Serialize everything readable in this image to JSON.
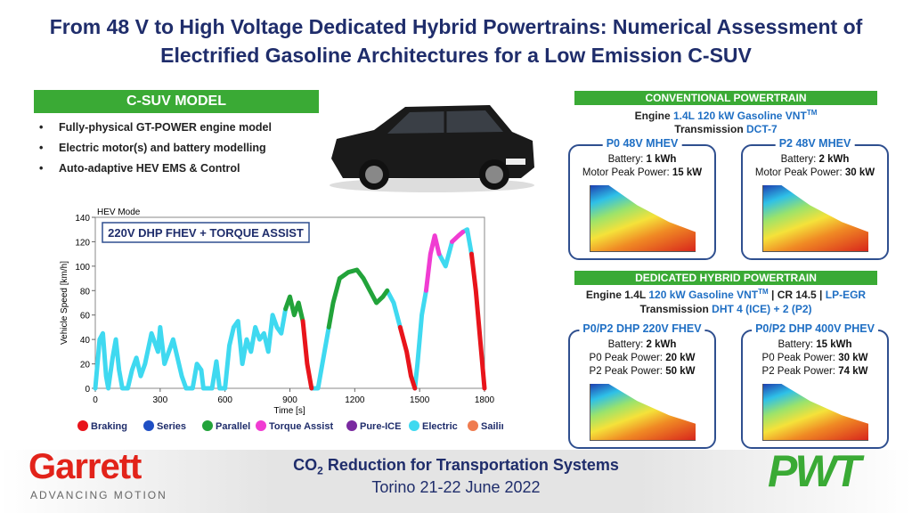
{
  "title": "From 48 V to High Voltage Dedicated Hybrid Powertrains: Numerical Assessment of Electrified Gasoline Architectures for a Low Emission C-SUV",
  "model": {
    "heading": "C-SUV MODEL",
    "bullets": [
      "Fully-physical GT-POWER engine model",
      "Electric motor(s) and battery modelling",
      "Auto-adaptive HEV EMS & Control"
    ]
  },
  "chart_data": {
    "type": "line",
    "title": "HEV Mode",
    "annotation": "220V DHP FHEV + TORQUE ASSIST",
    "x_label": "Time [s]",
    "y_label": "Vehicle Speed [km/h]",
    "xlim": [
      0,
      1800
    ],
    "xticks": [
      0,
      300,
      600,
      900,
      1200,
      1500,
      1800
    ],
    "ylim": [
      0,
      140
    ],
    "yticks": [
      0,
      20,
      40,
      60,
      80,
      100,
      120,
      140
    ],
    "series": [
      {
        "name": "Braking",
        "color": "#e8141b",
        "x": [
          960,
          980,
          1000,
          null,
          1410,
          1440,
          1460,
          1478,
          null,
          1740,
          1760,
          1780,
          1800
        ],
        "values": [
          55,
          20,
          0,
          null,
          50,
          30,
          10,
          0,
          null,
          110,
          80,
          40,
          0
        ]
      },
      {
        "name": "Series",
        "color": "#1f4fc4",
        "x": [],
        "values": []
      },
      {
        "name": "Parallel",
        "color": "#22a33a",
        "x": [
          880,
          900,
          920,
          940,
          960,
          null,
          1080,
          1100,
          1130,
          1170,
          1210,
          1240,
          1270,
          1300,
          1330,
          1350
        ],
        "values": [
          65,
          75,
          60,
          70,
          55,
          null,
          50,
          70,
          90,
          95,
          97,
          90,
          80,
          70,
          75,
          80
        ]
      },
      {
        "name": "Torque Assist",
        "color": "#f03cd2",
        "x": [
          1530,
          1550,
          1570,
          1590,
          null,
          1650,
          1680,
          1700
        ],
        "values": [
          80,
          110,
          125,
          110,
          null,
          120,
          125,
          128
        ]
      },
      {
        "name": "Pure-ICE",
        "color": "#7a2aa0",
        "x": [],
        "values": []
      },
      {
        "name": "Electric",
        "color": "#3fd9f0",
        "x": [
          0,
          10,
          20,
          35,
          50,
          60,
          80,
          95,
          110,
          125,
          150,
          170,
          190,
          210,
          230,
          260,
          290,
          300,
          320,
          340,
          360,
          380,
          400,
          420,
          450,
          470,
          490,
          500,
          540,
          560,
          575,
          600,
          620,
          640,
          660,
          680,
          700,
          720,
          740,
          760,
          780,
          800,
          820,
          840,
          860,
          880,
          null,
          1000,
          1030,
          1060,
          1080,
          null,
          1350,
          1380,
          1410,
          null,
          1478,
          1490,
          1510,
          1530,
          null,
          1590,
          1620,
          1650,
          null,
          1700,
          1720,
          1740
        ],
        "values": [
          0,
          20,
          40,
          45,
          10,
          0,
          25,
          40,
          15,
          0,
          0,
          15,
          25,
          10,
          20,
          45,
          30,
          50,
          20,
          30,
          40,
          25,
          10,
          0,
          0,
          20,
          15,
          0,
          0,
          22,
          0,
          0,
          35,
          50,
          55,
          20,
          40,
          30,
          50,
          40,
          45,
          30,
          60,
          50,
          45,
          65,
          null,
          0,
          0,
          30,
          50,
          null,
          80,
          70,
          50,
          null,
          0,
          20,
          60,
          80,
          null,
          110,
          100,
          120,
          null,
          128,
          130,
          110
        ]
      },
      {
        "name": "Sailing",
        "color": "#ef7b4f",
        "x": [],
        "values": []
      }
    ]
  },
  "conventional": {
    "heading": "CONVENTIONAL POWERTRAIN",
    "engine_label": "Engine",
    "engine_value": "1.4L 120 kW Gasoline VNT",
    "engine_tm": "TM",
    "transmission_label": "Transmission",
    "transmission_value": "DCT-7",
    "panels": [
      {
        "title": "P0 48V MHEV",
        "lines": [
          [
            "Battery:",
            "1 kWh"
          ],
          [
            "Motor Peak Power:",
            "15 kW"
          ]
        ]
      },
      {
        "title": "P2 48V MHEV",
        "lines": [
          [
            "Battery:",
            "2 kWh"
          ],
          [
            "Motor Peak Power:",
            "30 kW"
          ]
        ]
      }
    ]
  },
  "dedicated": {
    "heading": "DEDICATED HYBRID POWERTRAIN",
    "engine_label": "Engine 1.4L",
    "engine_value": "120 kW Gasoline VNT",
    "engine_tm": "TM",
    "cr": "| CR 14.5 |",
    "egr": "LP-EGR",
    "transmission_label": "Transmission",
    "transmission_value": "DHT 4 (ICE) + 2 (P2)",
    "panels": [
      {
        "title": "P0/P2 DHP 220V FHEV",
        "lines": [
          [
            "Battery:",
            "2 kWh"
          ],
          [
            "P0 Peak Power:",
            "20 kW"
          ],
          [
            "P2 Peak Power:",
            "50 kW"
          ]
        ]
      },
      {
        "title": "P0/P2 DHP 400V PHEV",
        "lines": [
          [
            "Battery:",
            "15 kWh"
          ],
          [
            "P0 Peak Power:",
            "30 kW"
          ],
          [
            "P2 Peak Power:",
            "74 kW"
          ]
        ]
      }
    ]
  },
  "footer": {
    "logo": "Garrett",
    "tagline": "ADVANCING MOTION",
    "event_pre": "CO",
    "event_sub": "2",
    "event_post": " Reduction for Transportation Systems",
    "place": "Torino 21-22 June 2022",
    "partner": "PWT"
  }
}
